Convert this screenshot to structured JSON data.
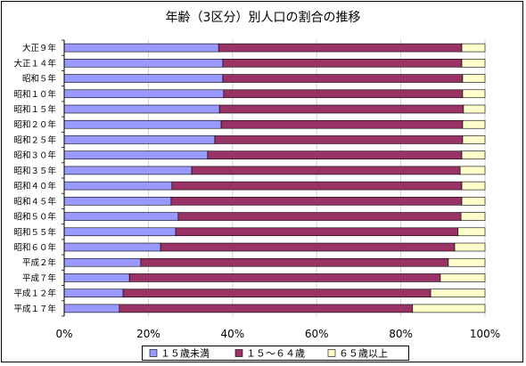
{
  "chart_data": {
    "type": "bar",
    "orientation": "horizontal",
    "stacked": "percent",
    "title": "年齢（3区分）別人口の割合の推移",
    "categories": [
      "大正９年",
      "大正１４年",
      "昭和５年",
      "昭和１０年",
      "昭和１５年",
      "昭和２０年",
      "昭和２５年",
      "昭和３０年",
      "昭和３５年",
      "昭和４０年",
      "昭和４５年",
      "昭和５０年",
      "昭和５５年",
      "昭和６０年",
      "平成２年",
      "平成７年",
      "平成１２年",
      "平成１７年"
    ],
    "series": [
      {
        "name": "１５歳未満",
        "color": "#9999FF",
        "values": [
          36.7,
          37.7,
          37.7,
          37.9,
          36.9,
          37.3,
          35.8,
          34.1,
          30.3,
          25.6,
          25.4,
          27.1,
          26.5,
          22.9,
          18.2,
          15.5,
          14.0,
          13.1
        ]
      },
      {
        "name": "１５～６４歳",
        "color": "#993366",
        "values": [
          57.8,
          56.8,
          57.0,
          56.8,
          58.0,
          57.4,
          58.9,
          60.4,
          63.8,
          68.9,
          69.1,
          67.2,
          67.1,
          69.9,
          73.1,
          73.9,
          73.1,
          69.7
        ]
      },
      {
        "name": "６５歳以上",
        "color": "#FFFFCC",
        "values": [
          5.5,
          5.5,
          5.3,
          5.3,
          5.1,
          5.3,
          5.3,
          5.5,
          5.9,
          5.5,
          5.5,
          5.7,
          6.4,
          7.2,
          8.7,
          10.6,
          12.9,
          17.2
        ]
      }
    ],
    "xlim": [
      0,
      100
    ],
    "x_ticks": [
      "0%",
      "20%",
      "40%",
      "60%",
      "80%",
      "100%"
    ],
    "grid": true,
    "legend_position": "bottom"
  }
}
